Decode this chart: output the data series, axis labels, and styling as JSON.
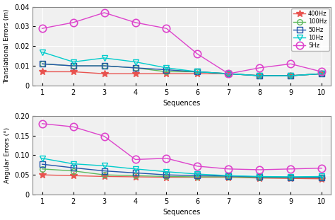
{
  "sequences": [
    1,
    2,
    3,
    4,
    5,
    6,
    7,
    8,
    9,
    10
  ],
  "trans_400Hz": [
    0.007,
    0.007,
    0.006,
    0.006,
    0.006,
    0.006,
    0.006,
    0.005,
    0.005,
    0.006
  ],
  "trans_100Hz": [
    0.011,
    0.01,
    0.01,
    0.009,
    0.007,
    0.007,
    0.006,
    0.005,
    0.005,
    0.006
  ],
  "trans_50Hz": [
    0.011,
    0.01,
    0.01,
    0.009,
    0.008,
    0.007,
    0.006,
    0.005,
    0.005,
    0.006
  ],
  "trans_10Hz": [
    0.017,
    0.012,
    0.014,
    0.012,
    0.009,
    0.007,
    0.006,
    0.005,
    0.005,
    0.006
  ],
  "trans_5Hz": [
    0.029,
    0.032,
    0.037,
    0.032,
    0.029,
    0.016,
    0.006,
    0.009,
    0.011,
    0.007
  ],
  "ang_400Hz": [
    0.05,
    0.048,
    0.046,
    0.045,
    0.044,
    0.044,
    0.044,
    0.042,
    0.041,
    0.04
  ],
  "ang_100Hz": [
    0.065,
    0.06,
    0.05,
    0.048,
    0.046,
    0.045,
    0.045,
    0.043,
    0.043,
    0.043
  ],
  "ang_50Hz": [
    0.077,
    0.068,
    0.06,
    0.055,
    0.05,
    0.048,
    0.047,
    0.045,
    0.044,
    0.044
  ],
  "ang_10Hz": [
    0.092,
    0.078,
    0.073,
    0.065,
    0.058,
    0.052,
    0.048,
    0.046,
    0.045,
    0.046
  ],
  "ang_5Hz": [
    0.18,
    0.172,
    0.148,
    0.089,
    0.092,
    0.072,
    0.065,
    0.063,
    0.065,
    0.067
  ],
  "color_400Hz": "#e8534f",
  "color_100Hz": "#5cb85c",
  "color_50Hz": "#2255aa",
  "color_10Hz": "#00cccc",
  "color_5Hz": "#dd44cc",
  "trans_ylabel": "Translational Errors (m)",
  "ang_ylabel": "Angular Errors (°)",
  "xlabel": "Sequences",
  "trans_ylim": [
    0,
    0.04
  ],
  "ang_ylim": [
    0,
    0.2
  ],
  "trans_yticks": [
    0,
    0.01,
    0.02,
    0.03,
    0.04
  ],
  "ang_yticks": [
    0,
    0.05,
    0.1,
    0.15,
    0.2
  ],
  "xticks": [
    1,
    2,
    3,
    4,
    5,
    6,
    7,
    8,
    9,
    10
  ],
  "background_color": "#f0f0f0"
}
